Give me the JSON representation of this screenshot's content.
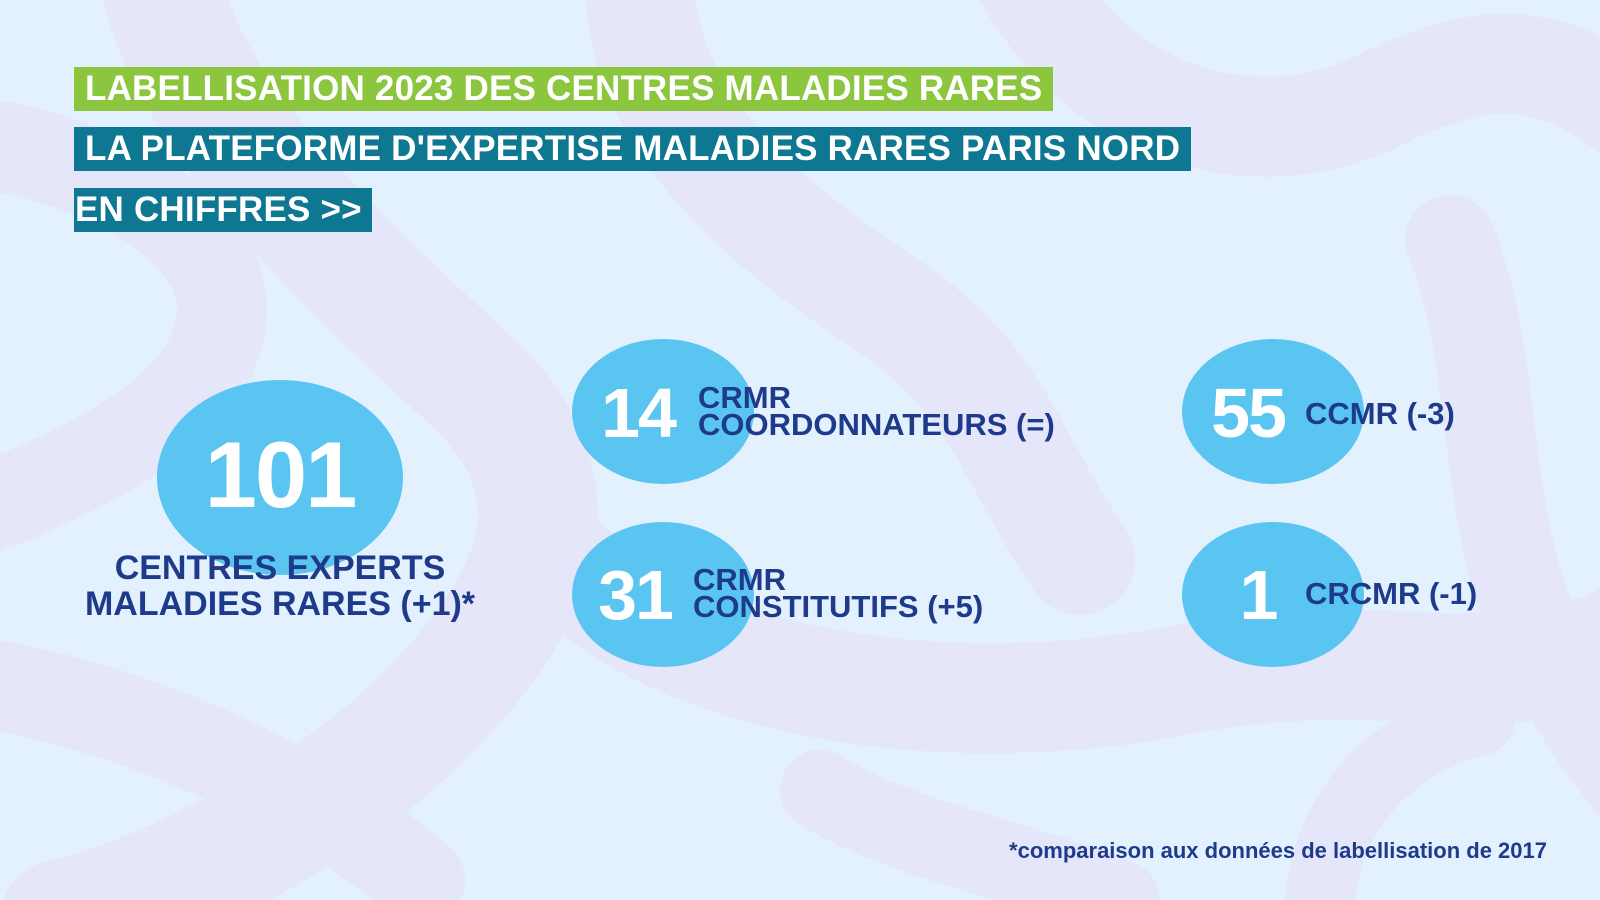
{
  "colors": {
    "green": "#8cc63f",
    "teal": "#0e7893",
    "bubble": "#5bc5f2",
    "navy": "#1e3a8a",
    "background": "#e3f0fd"
  },
  "header": {
    "line1": "LABELLISATION 2023 DES CENTRES MALADIES RARES",
    "line2": "LA PLATEFORME D'EXPERTISE MALADIES RARES PARIS NORD",
    "line3": "EN CHIFFRES >>"
  },
  "stats": {
    "main": {
      "value": "101",
      "label": "CENTRES EXPERTS MALADIES RARES (+1)*"
    },
    "crmr_coord": {
      "value": "14",
      "label_line1": "CRMR",
      "label_line2": "COORDONNATEURS (=)"
    },
    "crmr_const": {
      "value": "31",
      "label_line1": "CRMR",
      "label_line2": "CONSTITUTIFS (+5)"
    },
    "ccmr": {
      "value": "55",
      "label": "CCMR (-3)"
    },
    "crcmr": {
      "value": "1",
      "label": "CRCMR (-1)"
    }
  },
  "footnote": "*comparaison aux données de labellisation de 2017"
}
